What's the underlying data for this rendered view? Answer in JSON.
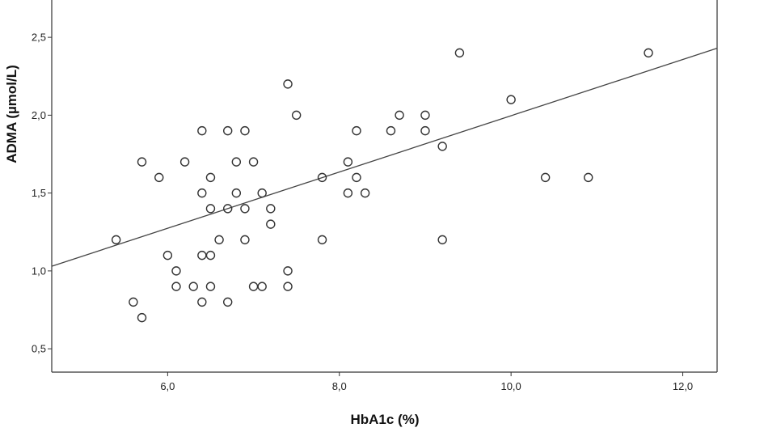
{
  "chart_data": {
    "type": "scatter",
    "title": "",
    "xlabel": "HbA1c (%)",
    "ylabel": "ADMA (µmol/L)",
    "xlim": [
      4.65,
      12.4
    ],
    "ylim": [
      0.35,
      2.75
    ],
    "x_ticks": [
      6.0,
      8.0,
      10.0,
      12.0
    ],
    "x_tick_labels": [
      "6,0",
      "8,0",
      "10,0",
      "12,0"
    ],
    "y_ticks": [
      0.5,
      1.0,
      1.5,
      2.0,
      2.5
    ],
    "y_tick_labels": [
      "0,5",
      "1,0",
      "1,5",
      "2,0",
      "2,5"
    ],
    "grid": false,
    "fit_line": {
      "type": "linear",
      "from": [
        4.65,
        1.03
      ],
      "to": [
        12.4,
        2.43
      ]
    },
    "series": [
      {
        "marker": "open-circle",
        "color": "#333333",
        "points": [
          [
            5.4,
            1.2
          ],
          [
            5.6,
            0.8
          ],
          [
            5.7,
            1.7
          ],
          [
            5.7,
            0.7
          ],
          [
            5.9,
            1.6
          ],
          [
            6.0,
            1.1
          ],
          [
            6.1,
            1.0
          ],
          [
            6.1,
            0.9
          ],
          [
            6.2,
            1.7
          ],
          [
            6.3,
            0.9
          ],
          [
            6.4,
            1.9
          ],
          [
            6.4,
            1.5
          ],
          [
            6.4,
            1.1
          ],
          [
            6.4,
            0.8
          ],
          [
            6.5,
            1.6
          ],
          [
            6.5,
            1.4
          ],
          [
            6.5,
            1.1
          ],
          [
            6.5,
            0.9
          ],
          [
            6.6,
            1.2
          ],
          [
            6.7,
            1.9
          ],
          [
            6.7,
            1.4
          ],
          [
            6.7,
            0.8
          ],
          [
            6.8,
            1.7
          ],
          [
            6.8,
            1.5
          ],
          [
            6.9,
            1.9
          ],
          [
            6.9,
            1.4
          ],
          [
            6.9,
            1.2
          ],
          [
            7.0,
            1.7
          ],
          [
            7.0,
            0.9
          ],
          [
            7.1,
            1.5
          ],
          [
            7.1,
            0.9
          ],
          [
            7.2,
            1.4
          ],
          [
            7.2,
            1.3
          ],
          [
            7.4,
            2.2
          ],
          [
            7.4,
            1.0
          ],
          [
            7.4,
            0.9
          ],
          [
            7.5,
            2.0
          ],
          [
            7.8,
            1.6
          ],
          [
            7.8,
            1.2
          ],
          [
            8.1,
            1.7
          ],
          [
            8.1,
            1.5
          ],
          [
            8.2,
            1.9
          ],
          [
            8.2,
            1.6
          ],
          [
            8.3,
            1.5
          ],
          [
            8.6,
            1.9
          ],
          [
            8.7,
            2.0
          ],
          [
            9.0,
            2.0
          ],
          [
            9.0,
            1.9
          ],
          [
            9.2,
            1.8
          ],
          [
            9.2,
            1.2
          ],
          [
            9.4,
            2.4
          ],
          [
            10.0,
            2.1
          ],
          [
            10.4,
            1.6
          ],
          [
            10.9,
            1.6
          ],
          [
            11.6,
            2.4
          ]
        ]
      }
    ]
  }
}
